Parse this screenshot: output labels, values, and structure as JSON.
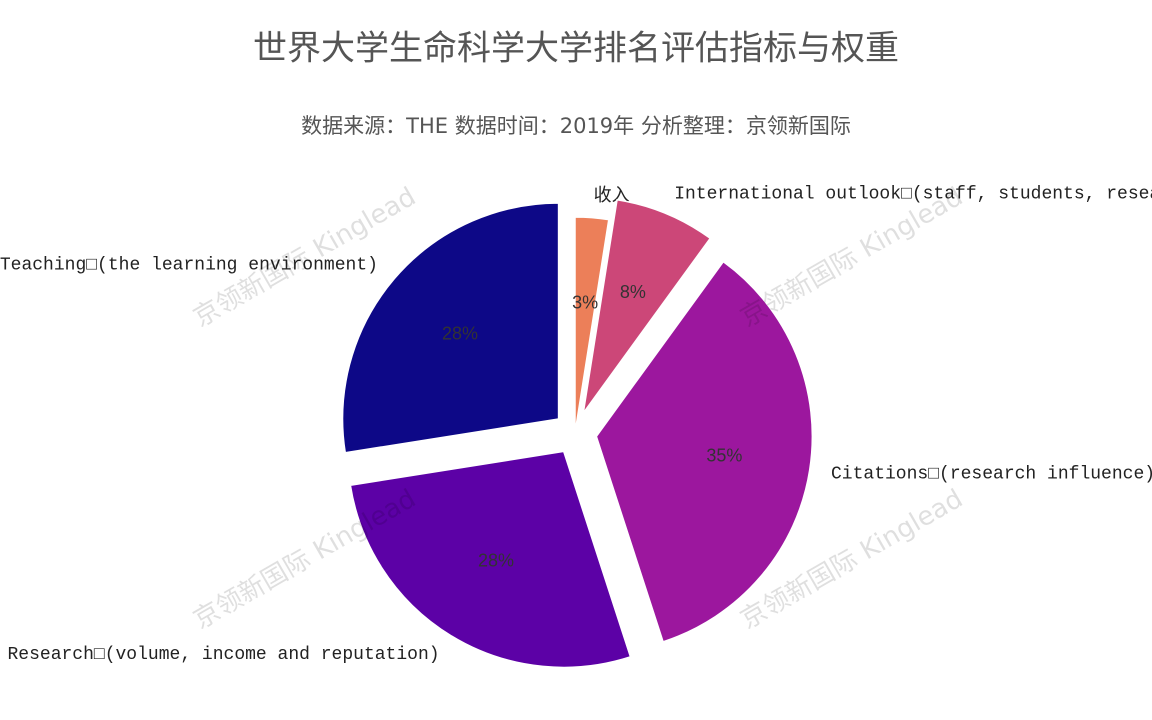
{
  "chart_data": {
    "type": "pie",
    "title": "世界大学生命科学大学排名评估指标与权重",
    "subtitle": "数据来源：THE 数据时间：2019年 分析整理：京领新国际",
    "watermark": "京领新国际 Kinglead",
    "categories": [
      "收入",
      "International outlook□(staff, students, resear",
      "Citations□(research influence)",
      "Research□(volume, income and reputation)",
      "Teaching□(the learning environment)"
    ],
    "values": [
      2.5,
      7.5,
      35,
      27.5,
      27.5
    ],
    "value_labels": [
      "3%",
      "8%",
      "35%",
      "28%",
      "28%"
    ],
    "colors": [
      "#ec7f59",
      "#cc4778",
      "#9c179e",
      "#5c01a6",
      "#0d0887"
    ]
  }
}
